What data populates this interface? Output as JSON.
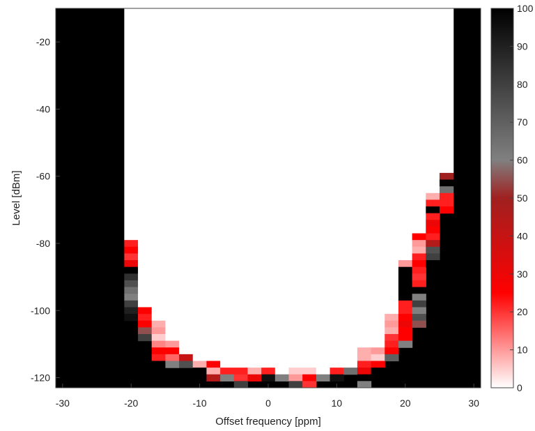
{
  "chart_data": {
    "type": "heatmap",
    "xlabel": "Offset frequency [ppm]",
    "ylabel": "Level [dBm]",
    "xlim": [
      -31,
      31
    ],
    "ylim": [
      -123,
      -10
    ],
    "x_ticks": [
      -30,
      -20,
      -10,
      0,
      10,
      20,
      30
    ],
    "x_tick_labels": [
      "-30",
      "-20",
      "-10",
      "0",
      "10",
      "20",
      "30"
    ],
    "y_ticks": [
      -20,
      -40,
      -60,
      -80,
      -100,
      -120
    ],
    "y_tick_labels": [
      "-20",
      "-40",
      "-60",
      "-80",
      "-100",
      "-120"
    ],
    "x_bin_edges": [
      -31,
      -21,
      -19,
      -17,
      -15,
      -13,
      -11,
      -9,
      -7,
      -5,
      -3,
      -1,
      1,
      3,
      5,
      7,
      9,
      11,
      13,
      15,
      17,
      19,
      21,
      23,
      25,
      27,
      31
    ],
    "cell_height_dbm": 2,
    "colorbar": {
      "range": [
        0,
        100
      ],
      "ticks": [
        0,
        10,
        20,
        30,
        40,
        50,
        60,
        70,
        80,
        90,
        100
      ],
      "tick_labels": [
        "0",
        "10",
        "20",
        "30",
        "40",
        "50",
        "60",
        "70",
        "80",
        "90",
        "100"
      ],
      "colormap_stops": [
        {
          "value": 0,
          "color": "#ffffff"
        },
        {
          "value": 10,
          "color": "#ff9a9a"
        },
        {
          "value": 25,
          "color": "#ff0000"
        },
        {
          "value": 50,
          "color": "#a02020"
        },
        {
          "value": 60,
          "color": "#808080"
        },
        {
          "value": 80,
          "color": "#404040"
        },
        {
          "value": 100,
          "color": "#000000"
        }
      ]
    },
    "background_value": 100,
    "columns": [
      {
        "x": -20,
        "y_top": -79,
        "cells": [
          22,
          25,
          20,
          30,
          100,
          85,
          75,
          65,
          60,
          80,
          90,
          95
        ]
      },
      {
        "x": -18,
        "y_top": -99,
        "cells": [
          25,
          22,
          25,
          55,
          80
        ]
      },
      {
        "x": -16,
        "y_top": -103,
        "cells": [
          8,
          10,
          5,
          12,
          25,
          22,
          100
        ]
      },
      {
        "x": -14,
        "y_top": -109,
        "cells": [
          10,
          25,
          15,
          60
        ]
      },
      {
        "x": -12,
        "y_top": -113,
        "cells": [
          40,
          75
        ]
      },
      {
        "x": -10,
        "y_top": -115,
        "cells": [
          8,
          100
        ]
      },
      {
        "x": -8,
        "y_top": -115,
        "cells": [
          25,
          8,
          45
        ]
      },
      {
        "x": -6,
        "y_top": -117,
        "cells": [
          22,
          60
        ]
      },
      {
        "x": -4,
        "y_top": -117,
        "cells": [
          22,
          20,
          80
        ]
      },
      {
        "x": -2,
        "y_top": -117,
        "cells": [
          8,
          30
        ]
      },
      {
        "x": 0,
        "y_top": -117,
        "cells": [
          22,
          95
        ]
      },
      {
        "x": 2,
        "y_top": -119,
        "cells": [
          60
        ]
      },
      {
        "x": 4,
        "y_top": -117,
        "cells": [
          5,
          10,
          80
        ]
      },
      {
        "x": 6,
        "y_top": -117,
        "cells": [
          5,
          25,
          20
        ]
      },
      {
        "x": 8,
        "y_top": -119,
        "cells": [
          60
        ]
      },
      {
        "x": 10,
        "y_top": -117,
        "cells": [
          22,
          95
        ]
      },
      {
        "x": 12,
        "y_top": -117,
        "cells": [
          65
        ]
      },
      {
        "x": 14,
        "y_top": -111,
        "cells": [
          8,
          8,
          22,
          30,
          100,
          60
        ]
      },
      {
        "x": 16,
        "y_top": -111,
        "cells": [
          10,
          5,
          25,
          100
        ]
      },
      {
        "x": 18,
        "y_top": -101,
        "cells": [
          8,
          10,
          8,
          20,
          22,
          25,
          70
        ]
      },
      {
        "x": 20,
        "y_top": -85,
        "cells": [
          10,
          100,
          100,
          100,
          100,
          100,
          22,
          22,
          25,
          30,
          25,
          25,
          60
        ]
      },
      {
        "x": 22,
        "y_top": -77,
        "cells": [
          25,
          10,
          8,
          22,
          25,
          22,
          20,
          22,
          100,
          60,
          80,
          60,
          75,
          55
        ]
      },
      {
        "x": 24,
        "y_top": -65,
        "cells": [
          8,
          22,
          100,
          22,
          30,
          25,
          22,
          45,
          75,
          80,
          100
        ]
      },
      {
        "x": 26,
        "y_top": -59,
        "cells": [
          50,
          100,
          65,
          22,
          22,
          25
        ]
      }
    ]
  }
}
